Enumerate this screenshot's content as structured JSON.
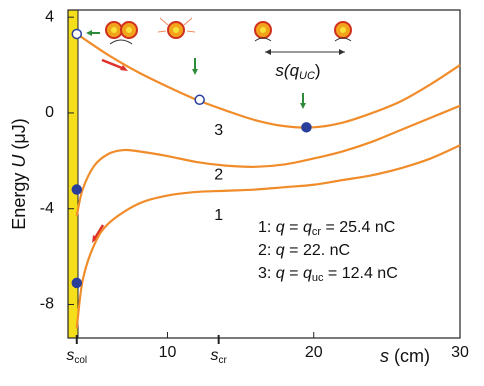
{
  "chart_data": {
    "type": "line",
    "y_label": [
      "Energy ",
      "U",
      " (μJ)"
    ],
    "x_label": [
      "s",
      " (cm)"
    ],
    "xlim": [
      3.2,
      30
    ],
    "ylim": [
      -9.4,
      4.3
    ],
    "xticks": [
      10,
      20,
      30
    ],
    "yticks": [
      4,
      0,
      -4,
      -8
    ],
    "x_special_ticks": [
      {
        "value": 3.8,
        "label": [
          "s",
          "col"
        ]
      },
      {
        "value": 13.5,
        "label": [
          "s",
          "cr"
        ]
      }
    ],
    "series": [
      {
        "name": "1",
        "label_parts": [
          "1: ",
          "q",
          " = ",
          "q",
          "cr",
          " = 25.4 nC"
        ],
        "color": "#f08c2a",
        "x": [
          3.8,
          4.2,
          5,
          6,
          8,
          10,
          12,
          14,
          16,
          18,
          20,
          22,
          24,
          26,
          28,
          30
        ],
        "values": [
          -9.0,
          -7.0,
          -5.5,
          -4.6,
          -3.8,
          -3.45,
          -3.3,
          -3.25,
          -3.2,
          -3.1,
          -3.0,
          -2.8,
          -2.6,
          -2.3,
          -1.9,
          -1.35
        ]
      },
      {
        "name": "2",
        "label_parts": [
          "2: ",
          "q",
          " = 22. nC"
        ],
        "color": "#f08c2a",
        "x": [
          3.8,
          4.2,
          5,
          6,
          7,
          8,
          10,
          12,
          14,
          16,
          18,
          20,
          22,
          24,
          26,
          28,
          30
        ],
        "values": [
          -4.3,
          -3.2,
          -2.2,
          -1.7,
          -1.55,
          -1.6,
          -1.8,
          -2.05,
          -2.2,
          -2.25,
          -2.15,
          -1.9,
          -1.6,
          -1.2,
          -0.7,
          -0.2,
          0.3
        ]
      },
      {
        "name": "3",
        "label_parts": [
          "3: ",
          "q",
          " = ",
          "q",
          "uc",
          " = 12.4 nC"
        ],
        "color": "#f08c2a",
        "x": [
          3.8,
          6,
          8,
          10,
          12,
          14,
          16,
          18,
          20,
          22,
          24,
          26,
          28,
          30
        ],
        "values": [
          3.3,
          2.4,
          1.7,
          1.1,
          0.55,
          0.1,
          -0.3,
          -0.55,
          -0.6,
          -0.4,
          0.0,
          0.5,
          1.2,
          2.0
        ]
      }
    ],
    "curve_label_pos": [
      {
        "x": 13.5,
        "y": -4.3
      },
      {
        "x": 13.5,
        "y": -2.6
      },
      {
        "x": 13.5,
        "y": -0.75
      }
    ],
    "markers": {
      "x": [
        3.8,
        3.8,
        3.8,
        12.2,
        19.5
      ],
      "values": [
        3.3,
        -3.2,
        -7.1,
        0.55,
        -0.6
      ],
      "filled": [
        false,
        true,
        true,
        false,
        true
      ],
      "color": "#2a3f9a"
    },
    "distance_label": [
      "s(q",
      "UC",
      ")"
    ]
  }
}
